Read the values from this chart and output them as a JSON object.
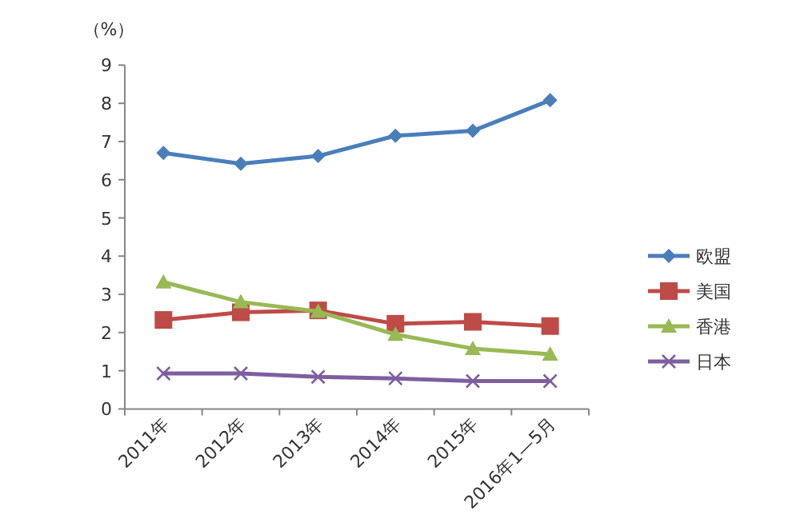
{
  "chart_data": {
    "type": "line",
    "ylabel": "（%）",
    "categories": [
      "2011年",
      "2012年",
      "2013年",
      "2014年",
      "2015年",
      "2016年1—5月"
    ],
    "series": [
      {
        "name": "欧盟",
        "color": "#4a7ebb",
        "marker": "diamond",
        "values": [
          6.7,
          6.42,
          6.62,
          7.15,
          7.28,
          8.08
        ]
      },
      {
        "name": "美国",
        "color": "#be4b48",
        "marker": "square",
        "values": [
          2.33,
          2.53,
          2.58,
          2.23,
          2.28,
          2.17
        ]
      },
      {
        "name": "香港",
        "color": "#98b954",
        "marker": "triangle",
        "values": [
          3.32,
          2.8,
          2.55,
          1.95,
          1.58,
          1.43
        ]
      },
      {
        "name": "日本",
        "color": "#7d5fa0",
        "marker": "cross",
        "values": [
          0.93,
          0.93,
          0.84,
          0.8,
          0.73,
          0.73
        ]
      }
    ],
    "ylim": [
      0,
      9
    ],
    "yticks": [
      0,
      1,
      2,
      3,
      4,
      5,
      6,
      7,
      8,
      9
    ],
    "grid": false,
    "legend": "right"
  }
}
